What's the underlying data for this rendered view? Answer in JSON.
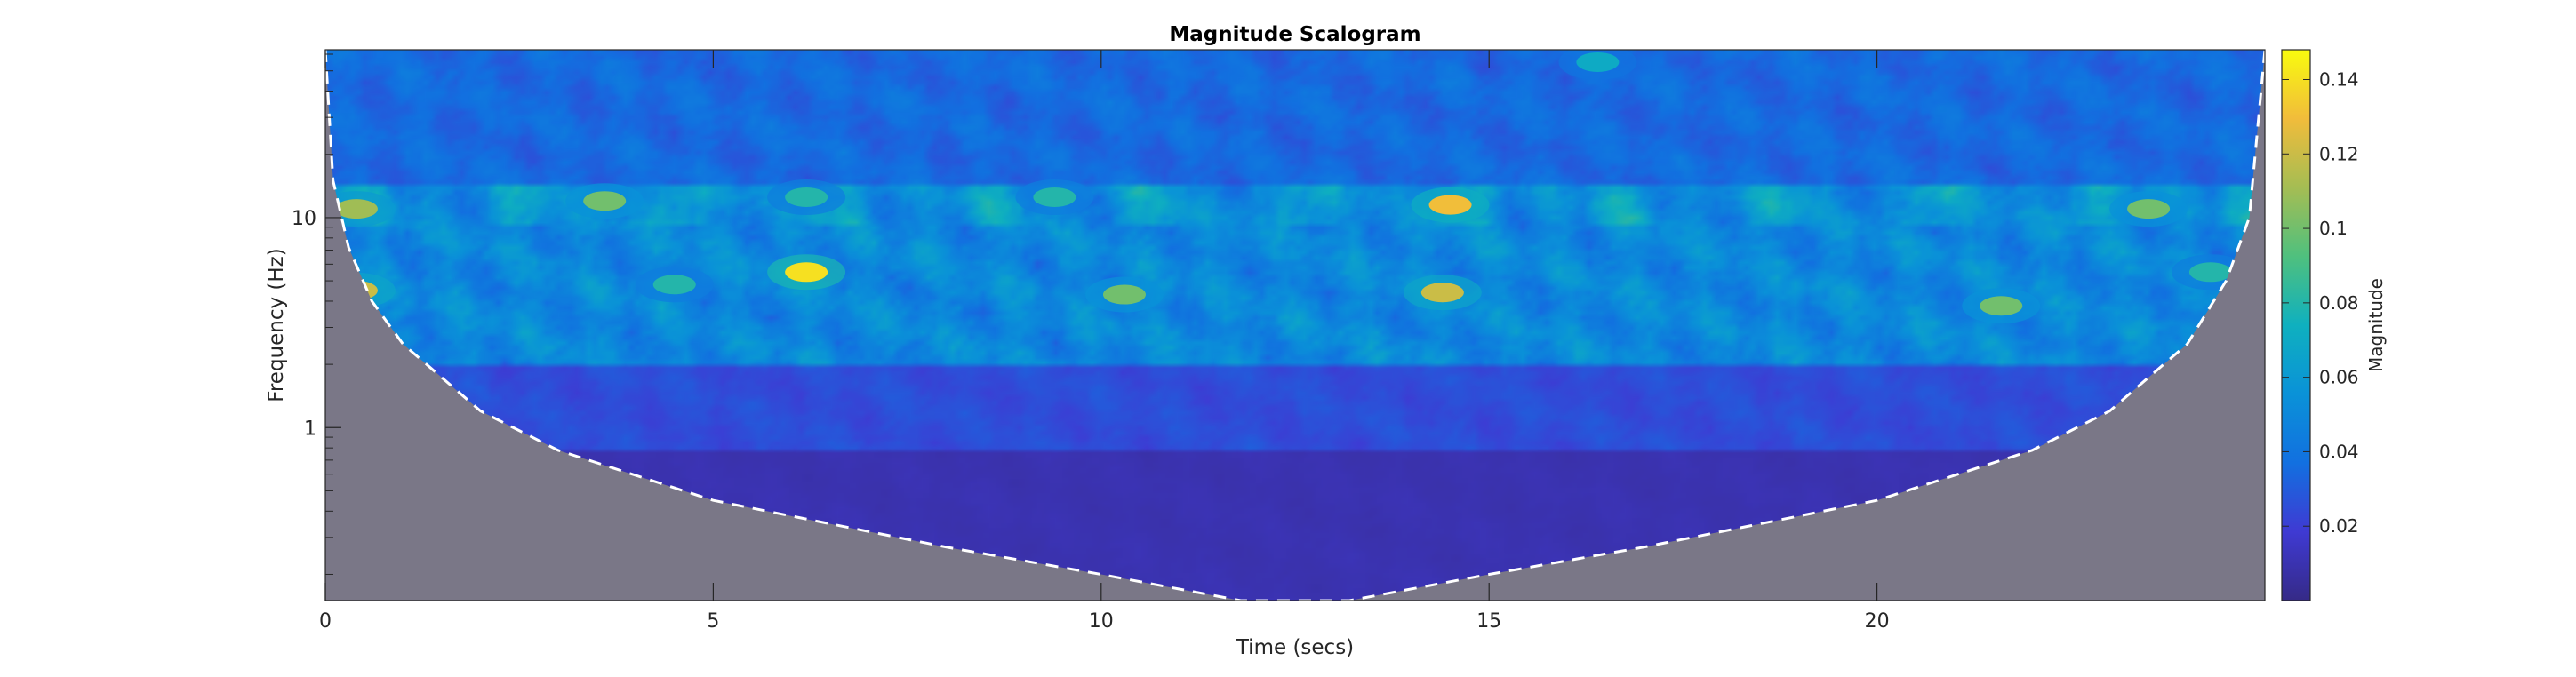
{
  "chart_data": {
    "type": "heatmap",
    "title": "Magnitude Scalogram",
    "xlabel": "Time (secs)",
    "ylabel": "Frequency (Hz)",
    "xlim": [
      0,
      25
    ],
    "ylim_log": [
      0.15,
      63
    ],
    "x_ticks": [
      0,
      5,
      10,
      15,
      20
    ],
    "x_tick_labels": [
      "0",
      "5",
      "10",
      "15",
      "20"
    ],
    "y_ticks": [
      1,
      10
    ],
    "y_tick_labels": [
      "1",
      "10"
    ],
    "colorbar": {
      "label": "Magnitude",
      "range": [
        0,
        0.148
      ],
      "ticks": [
        0.02,
        0.04,
        0.06,
        0.08,
        0.1,
        0.12,
        0.14
      ],
      "tick_labels": [
        "0.02",
        "0.04",
        "0.06",
        "0.08",
        "0.1",
        "0.12",
        "0.14"
      ]
    },
    "colormap": "parula",
    "cone_of_influence": {
      "style": "dashed white line, shaded gray outside",
      "time": [
        0,
        0.1,
        0.3,
        0.6,
        1,
        2,
        3,
        5,
        8,
        10,
        11.8,
        12.5,
        13.2,
        15,
        17,
        20,
        22,
        23,
        24,
        24.5,
        24.8,
        25
      ],
      "frequency": [
        63,
        15,
        7.2,
        4.0,
        2.5,
        1.2,
        0.78,
        0.45,
        0.27,
        0.2,
        0.15,
        0.15,
        0.15,
        0.2,
        0.27,
        0.45,
        0.78,
        1.2,
        2.5,
        5.0,
        10,
        63
      ]
    },
    "hotspots": [
      {
        "time": 6.2,
        "frequency": 5.5,
        "magnitude": 0.14
      },
      {
        "time": 14.4,
        "frequency": 4.4,
        "magnitude": 0.12
      },
      {
        "time": 14.5,
        "frequency": 11.5,
        "magnitude": 0.13
      },
      {
        "time": 0.4,
        "frequency": 4.5,
        "magnitude": 0.12
      },
      {
        "time": 0.4,
        "frequency": 11,
        "magnitude": 0.11
      },
      {
        "time": 10.3,
        "frequency": 4.3,
        "magnitude": 0.1
      },
      {
        "time": 3.6,
        "frequency": 12,
        "magnitude": 0.1
      },
      {
        "time": 21.6,
        "frequency": 3.8,
        "magnitude": 0.1
      },
      {
        "time": 23.5,
        "frequency": 11,
        "magnitude": 0.1
      },
      {
        "time": 4.5,
        "frequency": 4.8,
        "magnitude": 0.08
      },
      {
        "time": 6.2,
        "frequency": 12.5,
        "magnitude": 0.08
      },
      {
        "time": 9.4,
        "frequency": 12.5,
        "magnitude": 0.08
      },
      {
        "time": 16.4,
        "frequency": 55,
        "magnitude": 0.07
      },
      {
        "time": 24.3,
        "frequency": 5.5,
        "magnitude": 0.08
      }
    ]
  }
}
